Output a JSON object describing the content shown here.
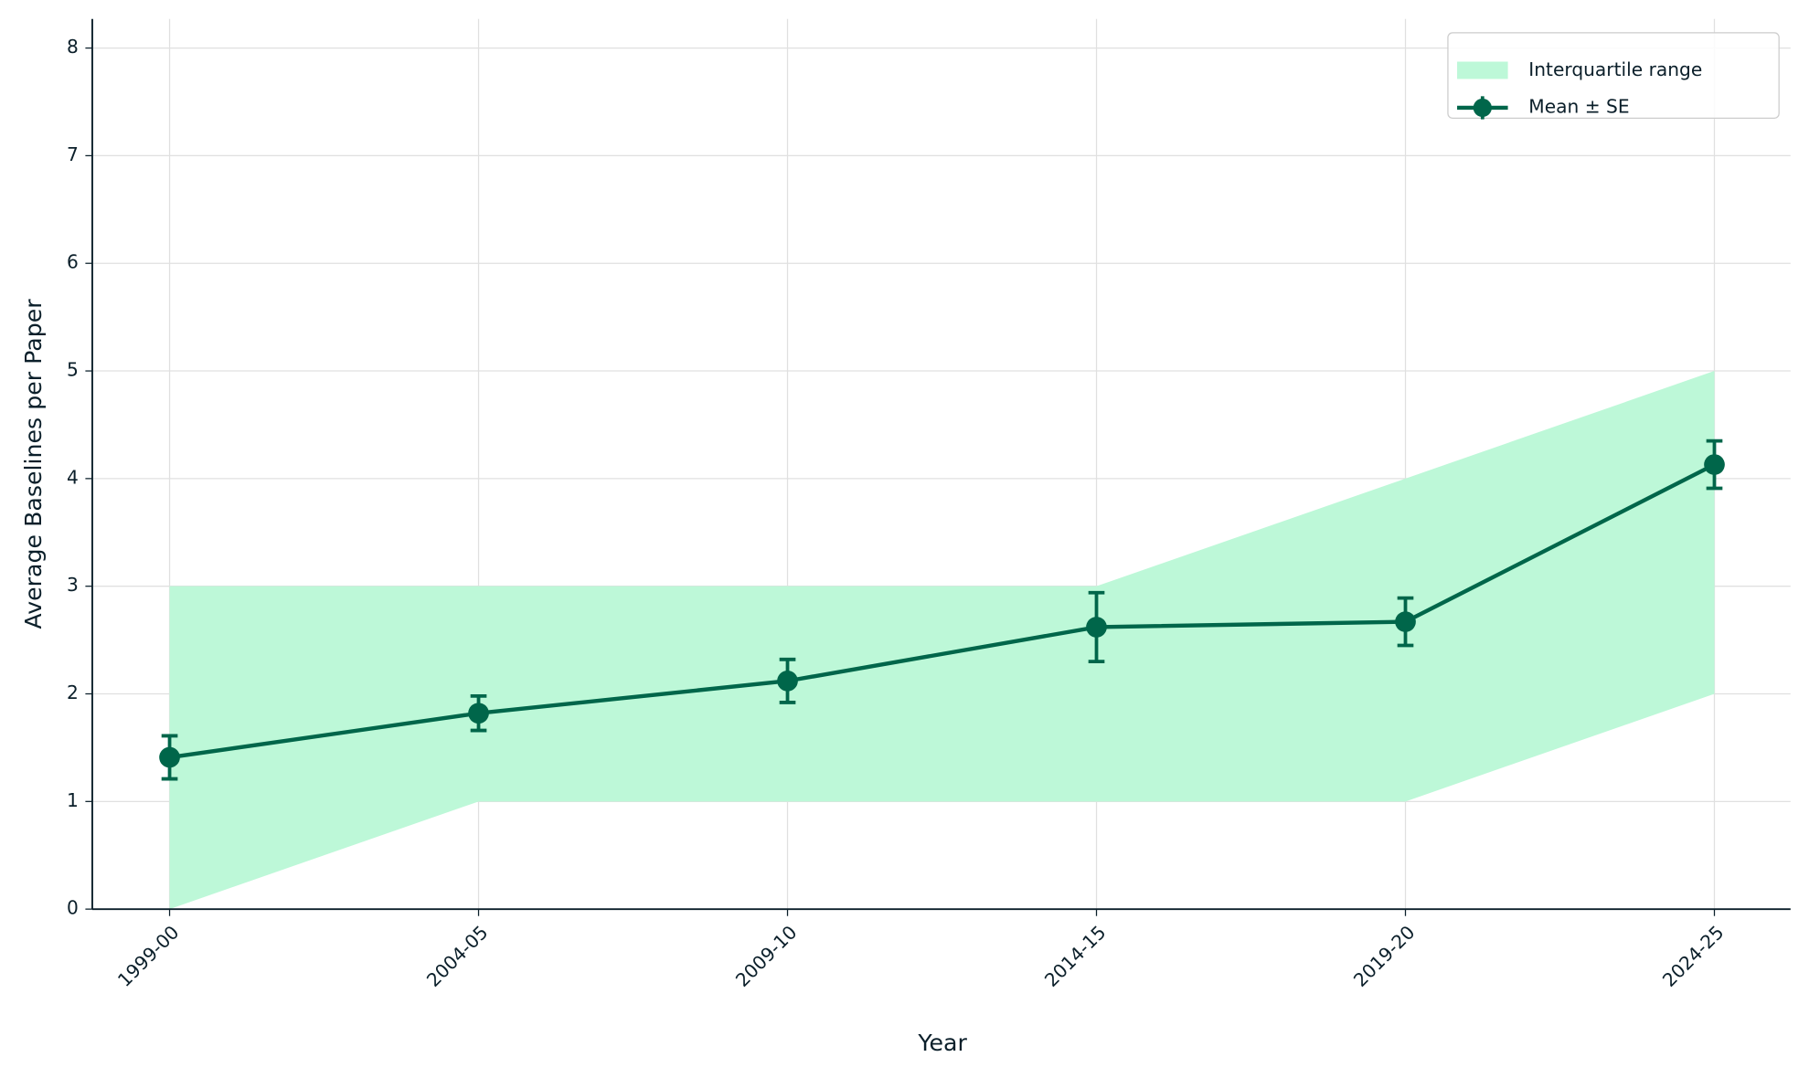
{
  "chart_data": {
    "type": "line",
    "xlabel": "Year",
    "ylabel": "Average Baselines per Paper",
    "categories": [
      "1999-00",
      "2004-05",
      "2009-10",
      "2014-15",
      "2019-20",
      "2024-25"
    ],
    "band": {
      "name": "Interquartile range",
      "color": "#bdf8d8",
      "lower": [
        0,
        1,
        1,
        1,
        1,
        2
      ],
      "upper": [
        3,
        3,
        3,
        3,
        4,
        5
      ]
    },
    "series": [
      {
        "name": "Mean ± SE",
        "color": "#00664a",
        "values": [
          1.41,
          1.82,
          2.12,
          2.62,
          2.67,
          4.13
        ],
        "errors": [
          0.2,
          0.16,
          0.2,
          0.32,
          0.22,
          0.22
        ]
      }
    ],
    "ylim": [
      0,
      8.27
    ],
    "yticks": [
      0,
      1,
      2,
      3,
      4,
      5,
      6,
      7,
      8
    ],
    "grid": true,
    "legend": "upper right"
  }
}
